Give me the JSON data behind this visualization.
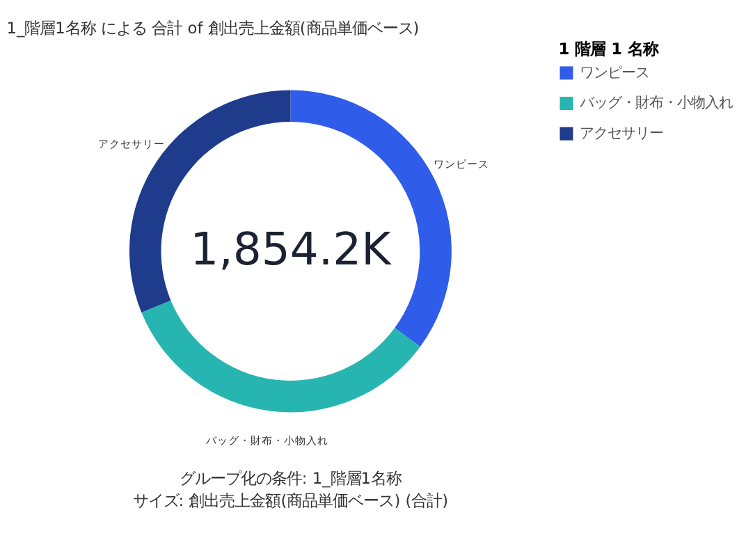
{
  "chart_data": {
    "type": "donut",
    "title": "1_階層1名称 による 合計 of 創出売上金額(商品単価ベース)",
    "legend_title": "1 階層 1 名称",
    "legend": "top right",
    "categories": [
      "ワンピース",
      "バッグ・財布・小物入れ",
      "アクセサリー"
    ],
    "values": [
      35.1,
      33.7,
      31.2
    ],
    "colors": [
      "#2f5ce8",
      "#27b5b1",
      "#1f3b8c"
    ],
    "annotations": [
      "1,854.2K",
      "グループ化の条件: 1_階層1名称",
      "サイズ: 創出売上金額(商品単価ベース) (合計)"
    ]
  }
}
